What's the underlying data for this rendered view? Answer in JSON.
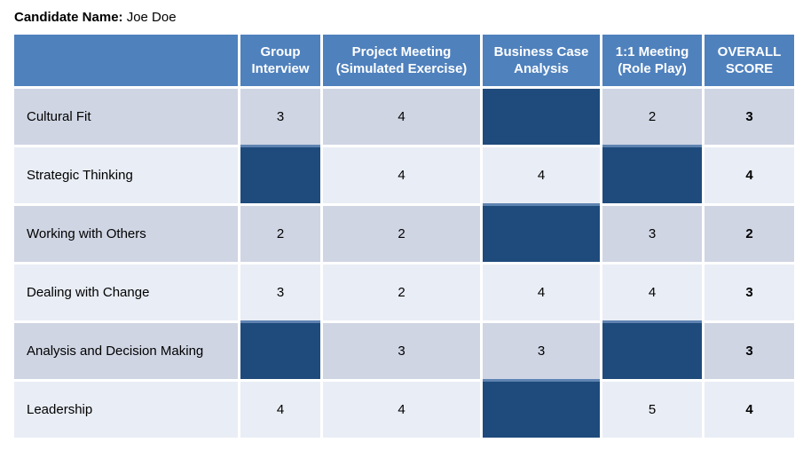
{
  "title": {
    "label": "Candidate Name:",
    "value": "Joe Doe"
  },
  "table": {
    "columns": [
      {
        "id": "criteria",
        "label": ""
      },
      {
        "id": "group-interview",
        "label": "Group Interview"
      },
      {
        "id": "project-meeting",
        "label": "Project Meeting (Simulated Exercise)"
      },
      {
        "id": "business-case-analysis",
        "label": "Business Case Analysis"
      },
      {
        "id": "one-to-one-meeting",
        "label": "1:1 Meeting (Role Play)"
      },
      {
        "id": "overall-score",
        "label": "OVERALL SCORE"
      }
    ],
    "rows": [
      {
        "label": "Cultural Fit",
        "scores": [
          "3",
          "4",
          null,
          "2"
        ],
        "overall": "3"
      },
      {
        "label": "Strategic Thinking",
        "scores": [
          null,
          "4",
          "4",
          null
        ],
        "overall": "4"
      },
      {
        "label": "Working with Others",
        "scores": [
          "2",
          "2",
          null,
          "3"
        ],
        "overall": "2"
      },
      {
        "label": "Dealing with Change",
        "scores": [
          "3",
          "2",
          "4",
          "4"
        ],
        "overall": "3"
      },
      {
        "label": "Analysis and Decision Making",
        "scores": [
          null,
          "3",
          "3",
          null
        ],
        "overall": "3"
      },
      {
        "label": "Leadership",
        "scores": [
          "4",
          "4",
          null,
          "5"
        ],
        "overall": "4"
      }
    ]
  },
  "colors": {
    "header_bg": "#4F81BD",
    "header_text": "#FFFFFF",
    "dark_cell": "#1F4B7C",
    "row_odd": "#CFD5E3",
    "row_even": "#E9EDF5",
    "dark_cell_top_strip": "#5E83B1",
    "text": "#000000"
  }
}
